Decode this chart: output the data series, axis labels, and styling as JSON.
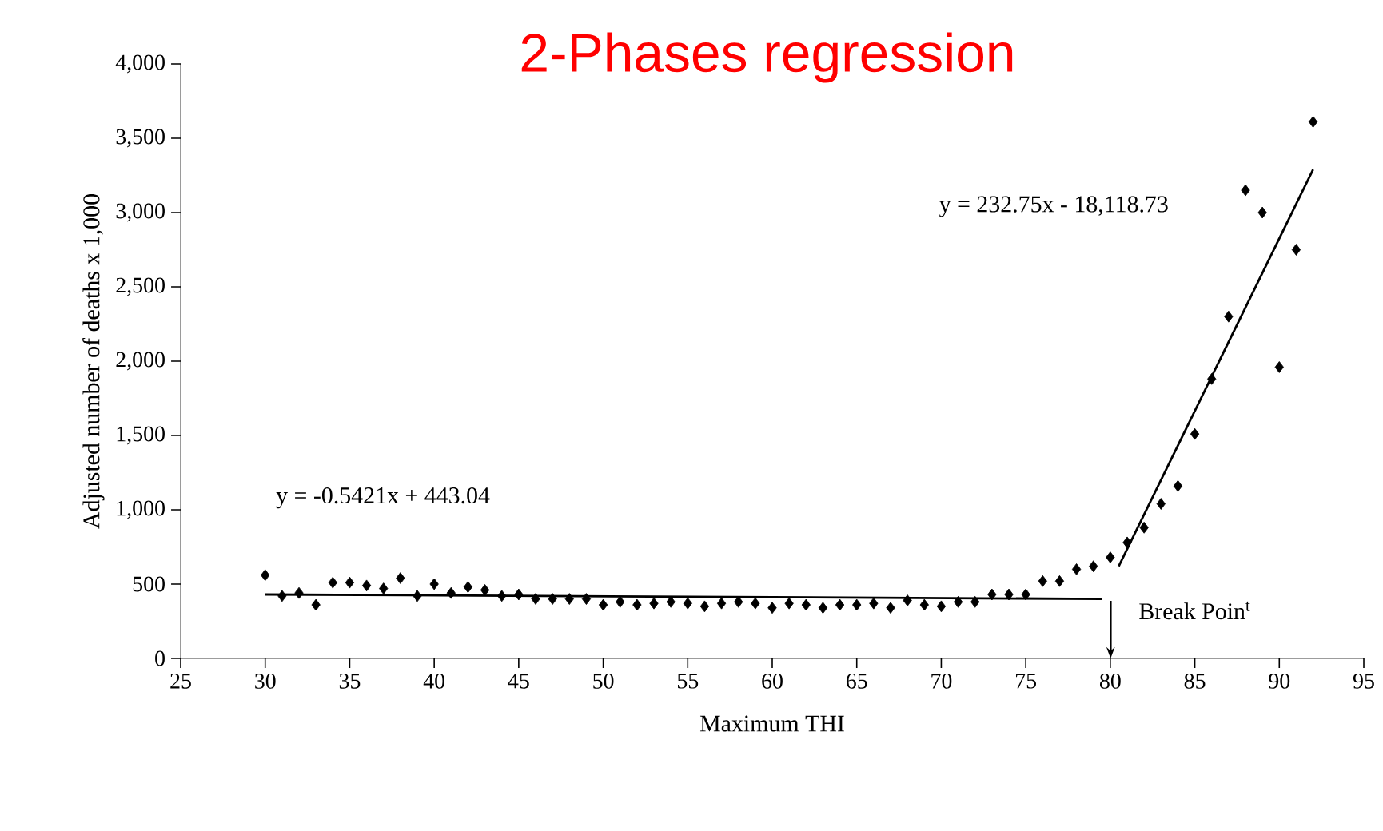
{
  "chart_data": {
    "type": "scatter",
    "title": "2-Phases regression",
    "xlabel": "Maximum THI",
    "ylabel": "Adjusted number of deaths x 1,000",
    "xlim": [
      25,
      95
    ],
    "xticks": [
      25,
      30,
      35,
      40,
      45,
      50,
      55,
      60,
      65,
      70,
      75,
      80,
      85,
      90,
      95
    ],
    "ylim": [
      0,
      4000
    ],
    "yticks": [
      0,
      500,
      {
        "value": 1000,
        "label": "1,000"
      },
      {
        "value": 1500,
        "label": "1,500"
      },
      {
        "value": 2000,
        "label": "2,000"
      },
      {
        "value": 2500,
        "label": "2,500"
      },
      {
        "value": 3000,
        "label": "3,000"
      },
      {
        "value": 3500,
        "label": "3,500"
      },
      {
        "value": 4000,
        "label": "4,000"
      }
    ],
    "grid": false,
    "series": [
      {
        "marker": "diamond",
        "color": "#000000",
        "x": [
          30,
          31,
          32,
          33,
          34,
          35,
          36,
          37,
          38,
          39,
          40,
          41,
          42,
          43,
          44,
          45,
          46,
          47,
          48,
          49,
          50,
          51,
          52,
          53,
          54,
          55,
          56,
          57,
          58,
          59,
          60,
          61,
          62,
          63,
          64,
          65,
          66,
          67,
          68,
          69,
          70,
          71,
          72,
          73,
          74,
          75,
          76,
          77,
          78,
          79,
          80,
          81,
          82,
          83,
          84,
          85,
          86,
          87,
          88,
          89,
          90,
          91,
          92
        ],
        "values": [
          560,
          420,
          440,
          360,
          510,
          510,
          490,
          470,
          540,
          420,
          500,
          440,
          480,
          460,
          420,
          430,
          400,
          400,
          400,
          400,
          360,
          380,
          360,
          370,
          380,
          370,
          350,
          370,
          380,
          370,
          340,
          370,
          360,
          340,
          360,
          360,
          370,
          340,
          390,
          360,
          350,
          380,
          380,
          430,
          430,
          430,
          520,
          520,
          600,
          620,
          680,
          780,
          880,
          1040,
          1160,
          1510,
          1880,
          2300,
          3150,
          3000,
          1960,
          2750,
          3610
        ]
      },
      {
        "type": "line",
        "marker": "none",
        "color": "#000000",
        "x": [
          30,
          79.5
        ],
        "values": [
          430,
          400
        ]
      },
      {
        "type": "line",
        "marker": "none",
        "color": "#000000",
        "x": [
          80.5,
          92
        ],
        "values": [
          620,
          3290
        ]
      }
    ],
    "annotations": [
      "y = -0.5421x + 443.04",
      "y = 232.75x - 18,118.73",
      "Break Poin$^{t}$"
    ]
  }
}
